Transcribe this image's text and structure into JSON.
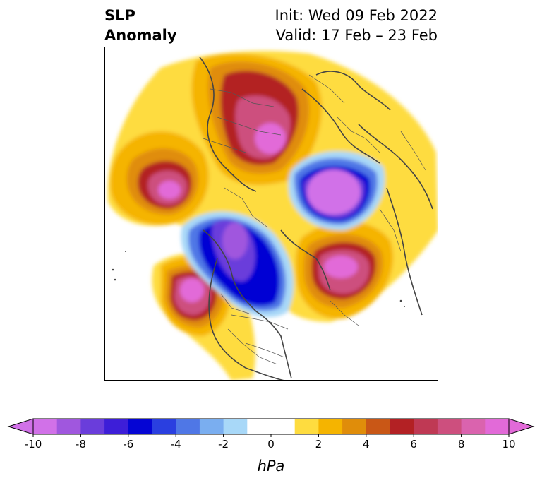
{
  "title": {
    "left_line1": "SLP",
    "left_line2": "Anomaly",
    "right_line1": "Init: Wed 09 Feb 2022",
    "right_line2": "Valid: 17 Feb – 23 Feb"
  },
  "colorbar": {
    "unit": "hPa",
    "min": -10,
    "max": 10,
    "step": 1,
    "tick_labels": [
      "-10",
      "-8",
      "-6",
      "-4",
      "-2",
      "0",
      "2",
      "4",
      "6",
      "8",
      "10"
    ],
    "colors": [
      "#d171e8",
      "#a057de",
      "#6a3ddb",
      "#3d1ed8",
      "#0505d4",
      "#2a3fe0",
      "#4f77e6",
      "#7aaef0",
      "#a8d8f8",
      "#ffffff",
      "#ffffff",
      "#fedc3f",
      "#f5b400",
      "#e08d0a",
      "#c95716",
      "#b32124",
      "#bf3954",
      "#cd4f7e",
      "#da63ae",
      "#e26ad8"
    ],
    "extend": "both"
  },
  "map_legend": {
    "icons": [
      "map-icon",
      "country-borders-icon",
      "coastline-icon"
    ]
  },
  "anomalies": [
    {
      "name": "positive-northern-europe",
      "value": 8
    },
    {
      "name": "positive-north-pacific",
      "value": 8
    },
    {
      "name": "positive-north-atlantic",
      "value": 9
    },
    {
      "name": "positive-east-pacific",
      "value": 10
    },
    {
      "name": "negative-siberia",
      "value": -10
    },
    {
      "name": "negative-north-america",
      "value": -8
    }
  ]
}
